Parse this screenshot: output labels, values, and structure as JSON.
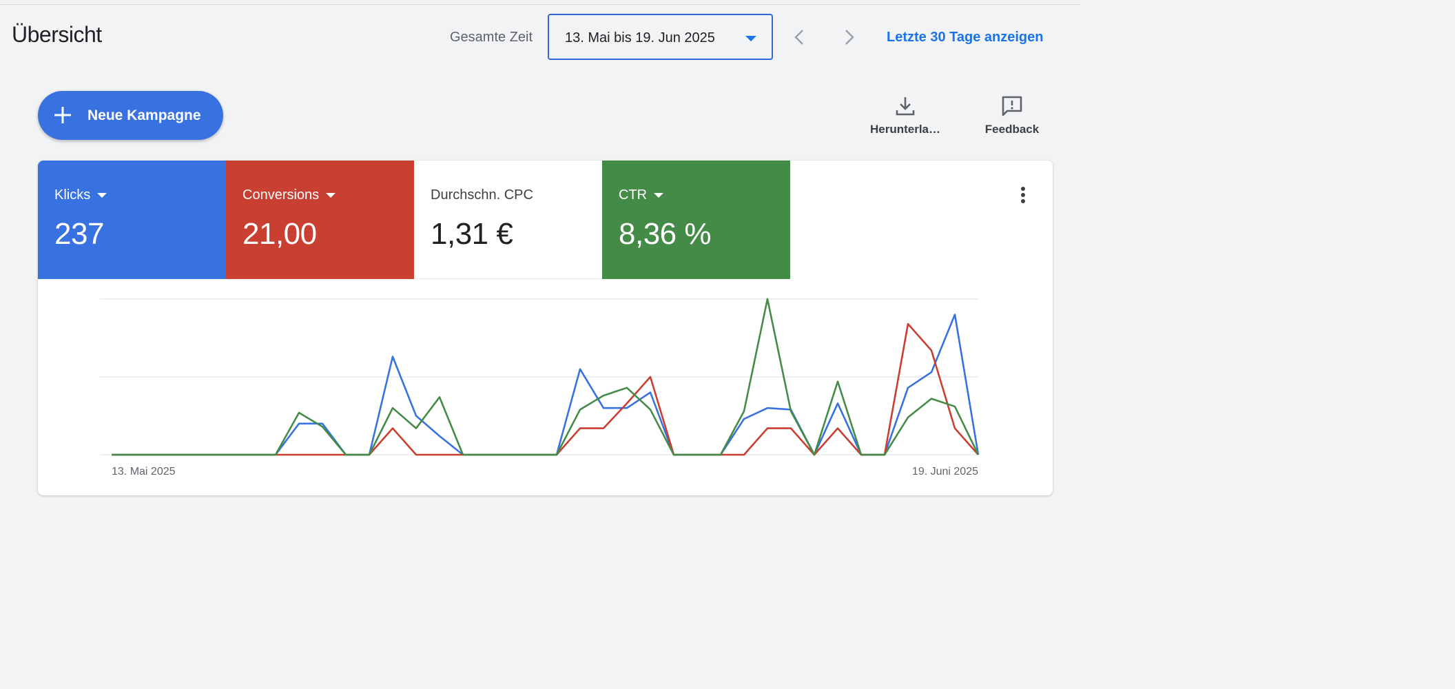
{
  "header": {
    "title": "Übersicht",
    "range_label": "Gesamte Zeit",
    "date_range": "13. Mai bis 19. Jun 2025",
    "last30_link": "Letzte 30 Tage anzeigen"
  },
  "actions": {
    "new_campaign": "Neue Kampagne",
    "download": "Herunterla…",
    "feedback": "Feedback"
  },
  "metrics": [
    {
      "name": "Klicks",
      "value": "237",
      "color": "#3872e0",
      "dropdown": true
    },
    {
      "name": "Conversions",
      "value": "21,00",
      "color": "#c93f31",
      "dropdown": true
    },
    {
      "name": "Durchschn. CPC",
      "value": "1,31 €",
      "color": "#ffffff",
      "dropdown": false
    },
    {
      "name": "CTR",
      "value": "8,36 %",
      "color": "#458b48",
      "dropdown": true
    }
  ],
  "chart_data": {
    "type": "line",
    "x_start_label": "13. Mai 2025",
    "x_end_label": "19. Juni 2025",
    "x": [
      "2025-05-13",
      "2025-05-14",
      "2025-05-15",
      "2025-05-16",
      "2025-05-17",
      "2025-05-18",
      "2025-05-19",
      "2025-05-20",
      "2025-05-21",
      "2025-05-22",
      "2025-05-23",
      "2025-05-24",
      "2025-05-25",
      "2025-05-26",
      "2025-05-27",
      "2025-05-28",
      "2025-05-29",
      "2025-05-30",
      "2025-05-31",
      "2025-06-01",
      "2025-06-02",
      "2025-06-03",
      "2025-06-04",
      "2025-06-05",
      "2025-06-06",
      "2025-06-07",
      "2025-06-08",
      "2025-06-09",
      "2025-06-10",
      "2025-06-11",
      "2025-06-12",
      "2025-06-13",
      "2025-06-14",
      "2025-06-15",
      "2025-06-16",
      "2025-06-17",
      "2025-06-18",
      "2025-06-19"
    ],
    "ylim": [
      0,
      1
    ],
    "grid": true,
    "series": [
      {
        "name": "Klicks",
        "color": "#3872e0",
        "values": [
          0,
          0,
          0,
          0,
          0,
          0,
          0,
          0,
          0.2,
          0.2,
          0,
          0,
          0.63,
          0.25,
          0.12,
          0,
          0,
          0,
          0,
          0,
          0.55,
          0.3,
          0.3,
          0.4,
          0,
          0,
          0,
          0.23,
          0.3,
          0.29,
          0,
          0.33,
          0,
          0,
          0.43,
          0.53,
          0.9,
          0
        ]
      },
      {
        "name": "Conversions",
        "color": "#c93f31",
        "values": [
          0,
          0,
          0,
          0,
          0,
          0,
          0,
          0,
          0,
          0,
          0,
          0,
          0.17,
          0,
          0,
          0,
          0,
          0,
          0,
          0,
          0.17,
          0.17,
          0.33,
          0.5,
          0,
          0,
          0,
          0,
          0.17,
          0.17,
          0,
          0.17,
          0,
          0,
          0.84,
          0.67,
          0.17,
          0
        ]
      },
      {
        "name": "CTR",
        "color": "#458b48",
        "values": [
          0,
          0,
          0,
          0,
          0,
          0,
          0,
          0,
          0.27,
          0.18,
          0,
          0,
          0.3,
          0.17,
          0.37,
          0,
          0,
          0,
          0,
          0,
          0.29,
          0.38,
          0.43,
          0.29,
          0,
          0,
          0,
          0.28,
          1.0,
          0.28,
          0,
          0.47,
          0,
          0,
          0.24,
          0.36,
          0.31,
          0
        ]
      }
    ]
  }
}
